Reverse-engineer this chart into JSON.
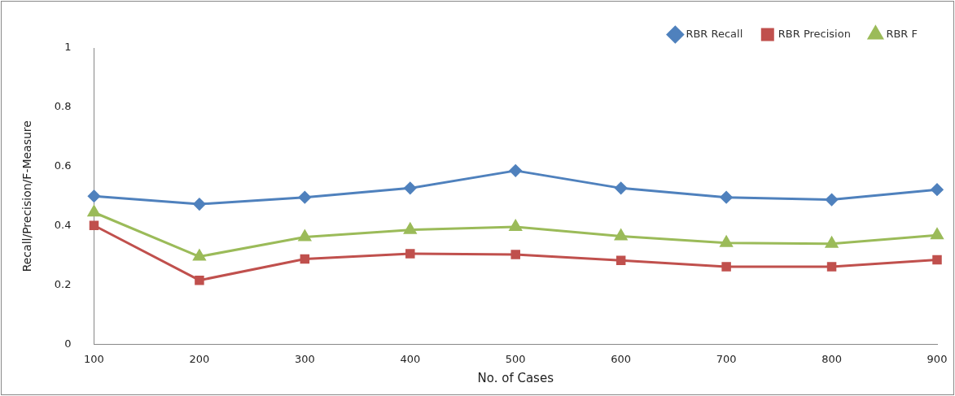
{
  "chart_data": {
    "type": "line",
    "xlabel": "No. of Cases",
    "ylabel": "Recall/Precision/F-Measure",
    "categories": [
      "100",
      "200",
      "300",
      "400",
      "500",
      "600",
      "700",
      "800",
      "900"
    ],
    "series": [
      {
        "name": "RBR Recall",
        "color": "#4f81bd",
        "marker": "diamond",
        "values": [
          0.5,
          0.473,
          0.496,
          0.527,
          0.586,
          0.527,
          0.496,
          0.488,
          0.522
        ]
      },
      {
        "name": "RBR Precision",
        "color": "#c0504d",
        "marker": "square",
        "values": [
          0.401,
          0.216,
          0.288,
          0.306,
          0.303,
          0.283,
          0.262,
          0.262,
          0.285
        ]
      },
      {
        "name": "RBR F",
        "color": "#9bbb59",
        "marker": "triangle",
        "values": [
          0.445,
          0.296,
          0.362,
          0.386,
          0.396,
          0.365,
          0.342,
          0.339,
          0.368
        ]
      }
    ],
    "ylim": [
      0,
      1
    ],
    "yticks": [
      0,
      0.2,
      0.4,
      0.6,
      0.8,
      1
    ],
    "grid": false,
    "legend": "top right",
    "line_style": "solid"
  }
}
